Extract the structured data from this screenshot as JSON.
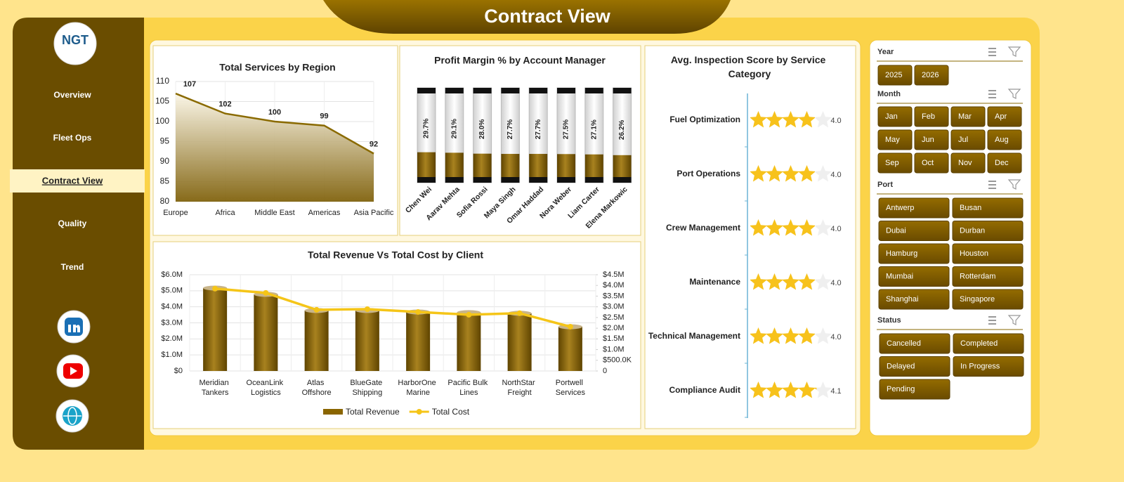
{
  "header": {
    "title": "Contract View"
  },
  "logo": {
    "text": "NGT"
  },
  "nav": {
    "items": [
      "Overview",
      "Fleet Ops",
      "Contract View",
      "Quality",
      "Trend"
    ],
    "active": "Contract View"
  },
  "slicers": [
    {
      "title": "Year",
      "items": [
        "2025",
        "2026"
      ]
    },
    {
      "title": "Month",
      "items": [
        "Jan",
        "Feb",
        "Mar",
        "Apr",
        "May",
        "Jun",
        "Jul",
        "Aug",
        "Sep",
        "Oct",
        "Nov",
        "Dec"
      ]
    },
    {
      "title": "Port",
      "items": [
        "Antwerp",
        "Busan",
        "Dubai",
        "Durban",
        "Hamburg",
        "Houston",
        "Mumbai",
        "Rotterdam",
        "Shanghai",
        "Singapore"
      ]
    },
    {
      "title": "Status",
      "items": [
        "Cancelled",
        "Completed",
        "Delayed",
        "In Progress",
        "Pending"
      ]
    }
  ],
  "chart_data": [
    {
      "type": "area",
      "title": "Total Services by Region",
      "categories": [
        "Europe",
        "Africa",
        "Middle East",
        "Americas",
        "Asia Pacific"
      ],
      "values": [
        107,
        102,
        100,
        99,
        92
      ],
      "color": "#8a6a00",
      "ylim": [
        80,
        110
      ],
      "yticks": [
        80,
        85,
        90,
        95,
        100,
        105,
        110
      ],
      "grid": true
    },
    {
      "type": "tube",
      "title": "Profit Margin % by Account Manager",
      "categories": [
        "Chen Wei",
        "Aarav Mehta",
        "Sofia Rossi",
        "Maya Singh",
        "Omar Haddad",
        "Nora Weber",
        "Liam Carter",
        "Elena Markowic"
      ],
      "values": [
        29.7,
        29.1,
        28.0,
        27.7,
        27.7,
        27.5,
        27.1,
        26.2
      ],
      "value_labels": [
        "29.7%",
        "29.1%",
        "28.0%",
        "27.7%",
        "27.7%",
        "27.5%",
        "27.1%",
        "26.2%"
      ],
      "ylim": [
        0,
        100
      ],
      "color": "#8a6a00"
    },
    {
      "type": "stars",
      "title": "Avg. Inspection Score by Service Category",
      "categories": [
        "Fuel Optimization",
        "Port Operations",
        "Crew Management",
        "Maintenance",
        "Technical Management",
        "Compliance Audit"
      ],
      "values": [
        4.0,
        4.0,
        4.0,
        4.0,
        4.0,
        4.1
      ],
      "value_labels": [
        "4.0",
        "4.0",
        "4.0",
        "4.0",
        "4.0",
        "4.1"
      ],
      "xlim": [
        0,
        5
      ],
      "color": "#f7c21b"
    },
    {
      "type": "combo",
      "title": "Total Revenue Vs Total Cost by Client",
      "categories": [
        "Meridian Tankers",
        "OceanLink Logistics",
        "Atlas Offshore",
        "BlueGate Shipping",
        "HarborOne Marine",
        "Pacific Bulk Lines",
        "NorthStar Freight",
        "Portwell Services"
      ],
      "series": [
        {
          "name": "Total Revenue",
          "type": "bar",
          "color": "#8a6500",
          "values": [
            5170000,
            4780000,
            3770000,
            3770000,
            3680000,
            3640000,
            3600000,
            2760000
          ]
        },
        {
          "name": "Total Cost",
          "type": "line",
          "axis": "y2",
          "color": "#f5c518",
          "values": [
            3850000,
            3650000,
            2860000,
            2890000,
            2760000,
            2630000,
            2700000,
            2070000
          ]
        }
      ],
      "ylim": [
        0,
        6000000
      ],
      "yticks": [
        {
          "value": 0,
          "label": "$0"
        },
        {
          "value": 1000000,
          "label": "$1.0M"
        },
        {
          "value": 2000000,
          "label": "$2.0M"
        },
        {
          "value": 3000000,
          "label": "$3.0M"
        },
        {
          "value": 4000000,
          "label": "$4.0M"
        },
        {
          "value": 5000000,
          "label": "$5.0M"
        },
        {
          "value": 6000000,
          "label": "$6.0M"
        }
      ],
      "y2lim": [
        0,
        4500000
      ],
      "y2ticks": [
        0,
        {
          "value": 500000,
          "label": "$500.0K"
        },
        {
          "value": 1000000,
          "label": "$1.0M"
        },
        {
          "value": 1500000,
          "label": "$1.5M"
        },
        {
          "value": 2000000,
          "label": "$2.0M"
        },
        {
          "value": 2500000,
          "label": "$2.5M"
        },
        {
          "value": 3000000,
          "label": "$3.0M"
        },
        {
          "value": 3500000,
          "label": "$3.5M"
        },
        {
          "value": 4000000,
          "label": "$4.0M"
        },
        {
          "value": 4500000,
          "label": "$4.5M"
        }
      ],
      "grid": true,
      "legend": "bottom"
    }
  ]
}
